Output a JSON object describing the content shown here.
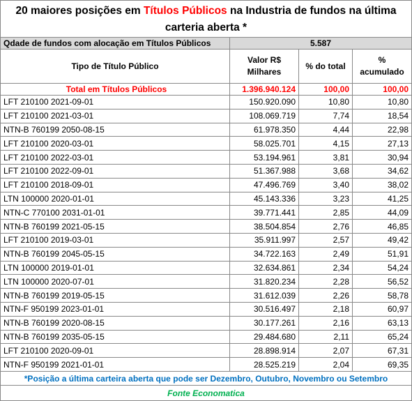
{
  "title": {
    "before": "20 maiores posições em ",
    "highlight": "Títulos Públicos",
    "after": " na Industria de fundos  na última carteria aberta *"
  },
  "summary": {
    "label": "Qdade de fundos com alocação em Títulos Públicos",
    "value": "5.587"
  },
  "header": [
    "Tipo de Título Público",
    "Valor R$ Milhares",
    "% do total",
    "% acumulado"
  ],
  "total": [
    "Total em Títulos Públicos",
    "1.396.940.124",
    "100,00",
    "100,00"
  ],
  "rows": [
    [
      "LFT 210100 2021-09-01",
      "150.920.090",
      "10,80",
      "10,80"
    ],
    [
      "LFT 210100 2021-03-01",
      "108.069.719",
      "7,74",
      "18,54"
    ],
    [
      "NTN-B 760199 2050-08-15",
      "61.978.350",
      "4,44",
      "22,98"
    ],
    [
      "LFT 210100 2020-03-01",
      "58.025.701",
      "4,15",
      "27,13"
    ],
    [
      "LFT 210100 2022-03-01",
      "53.194.961",
      "3,81",
      "30,94"
    ],
    [
      "LFT 210100 2022-09-01",
      "51.367.988",
      "3,68",
      "34,62"
    ],
    [
      "LFT 210100 2018-09-01",
      "47.496.769",
      "3,40",
      "38,02"
    ],
    [
      "LTN 100000 2020-01-01",
      "45.143.336",
      "3,23",
      "41,25"
    ],
    [
      "NTN-C 770100 2031-01-01",
      "39.771.441",
      "2,85",
      "44,09"
    ],
    [
      "NTN-B 760199 2021-05-15",
      "38.504.854",
      "2,76",
      "46,85"
    ],
    [
      "LFT 210100 2019-03-01",
      "35.911.997",
      "2,57",
      "49,42"
    ],
    [
      "NTN-B 760199 2045-05-15",
      "34.722.163",
      "2,49",
      "51,91"
    ],
    [
      "LTN 100000 2019-01-01",
      "32.634.861",
      "2,34",
      "54,24"
    ],
    [
      "LTN 100000 2020-07-01",
      "31.820.234",
      "2,28",
      "56,52"
    ],
    [
      "NTN-B 760199 2019-05-15",
      "31.612.039",
      "2,26",
      "58,78"
    ],
    [
      "NTN-F 950199 2023-01-01",
      "30.516.497",
      "2,18",
      "60,97"
    ],
    [
      "NTN-B 760199 2020-08-15",
      "30.177.261",
      "2,16",
      "63,13"
    ],
    [
      "NTN-B 760199 2035-05-15",
      "29.484.680",
      "2,11",
      "65,24"
    ],
    [
      "LFT 210100 2020-09-01",
      "28.898.914",
      "2,07",
      "67,31"
    ],
    [
      "NTN-F 950199 2021-01-01",
      "28.525.219",
      "2,04",
      "69,35"
    ]
  ],
  "note": "*Posição a última carteira aberta que pode ser Dezembro, Outubro, Novembro ou Setembro",
  "source": "Fonte Economatica"
}
